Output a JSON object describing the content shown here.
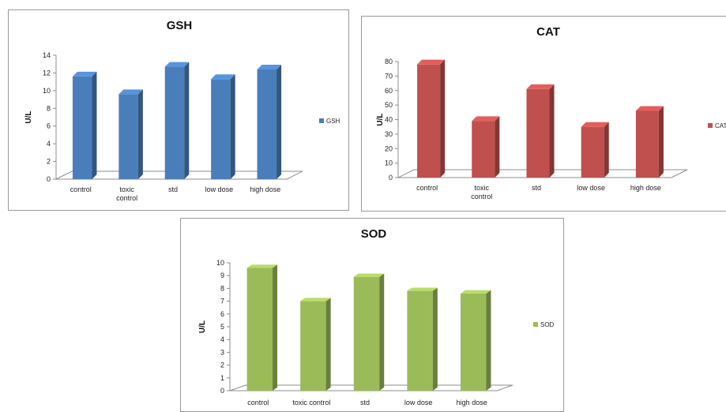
{
  "chart_data": [
    {
      "type": "bar",
      "title": "GSH",
      "ylabel": "U/L",
      "xlabel": "",
      "categories": [
        "control",
        "toxic control",
        "std",
        "low dose",
        "high dose"
      ],
      "series": [
        {
          "name": "GSH",
          "values": [
            11.6,
            9.6,
            12.7,
            11.3,
            12.4
          ],
          "color": "#4a7ebb"
        }
      ],
      "ylim": [
        0,
        14
      ],
      "yticks": [
        0,
        2,
        4,
        6,
        8,
        10,
        12,
        14
      ],
      "legend": "right",
      "grid": false
    },
    {
      "type": "bar",
      "title": "CAT",
      "ylabel": "U/L",
      "xlabel": "",
      "categories": [
        "control",
        "toxic control",
        "std",
        "low dose",
        "high dose"
      ],
      "series": [
        {
          "name": "CAT",
          "values": [
            78,
            39,
            61,
            35,
            46
          ],
          "color": "#c0504d"
        }
      ],
      "ylim": [
        0,
        80
      ],
      "yticks": [
        0,
        10,
        20,
        30,
        40,
        50,
        60,
        70,
        80
      ],
      "legend": "right",
      "grid": false
    },
    {
      "type": "bar",
      "title": "SOD",
      "ylabel": "U/L",
      "xlabel": "",
      "categories": [
        "control",
        "toxic control",
        "std",
        "low dose",
        "high dose"
      ],
      "series": [
        {
          "name": "SOD",
          "values": [
            9.6,
            7.0,
            8.9,
            7.8,
            7.6
          ],
          "color": "#9bbb59"
        }
      ],
      "ylim": [
        0,
        10
      ],
      "yticks": [
        0,
        1,
        2,
        3,
        4,
        5,
        6,
        7,
        8,
        9,
        10
      ],
      "legend": "right",
      "grid": false
    }
  ]
}
